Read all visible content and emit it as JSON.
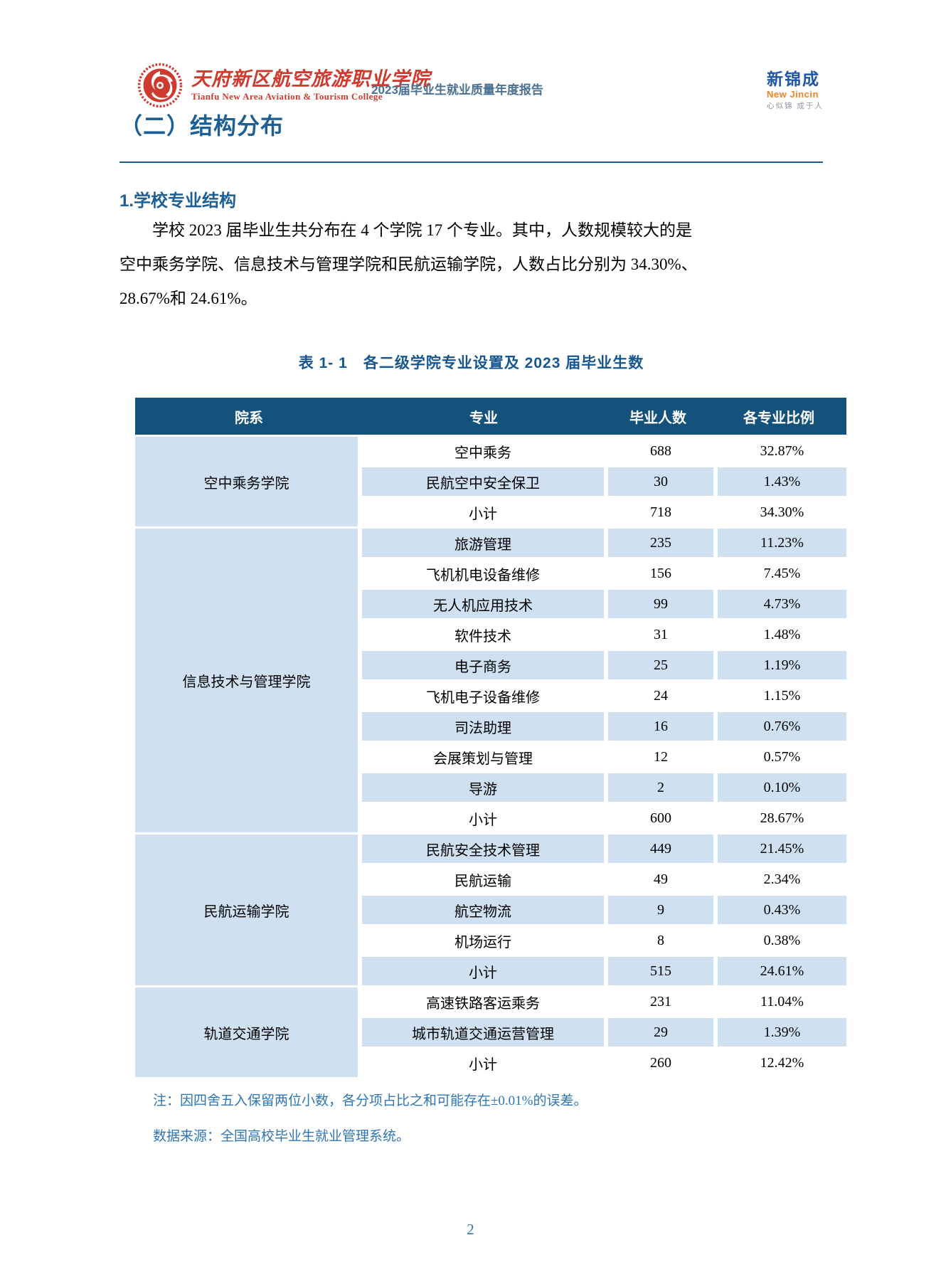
{
  "header": {
    "college_name_zh": "天府新区航空旅游职业学院",
    "college_name_en": "Tianfu New Area Aviation & Tourism College",
    "report_title": "2023届毕业生就业质量年度报告",
    "brand": {
      "name_zh": "新锦成",
      "name_en": "New Jincin",
      "slogan": "心似锦 成于人"
    }
  },
  "section": {
    "title": "（二）结构分布",
    "subsection": "1.学校专业结构",
    "paragraph_lines": [
      "学校 2023 届毕业生共分布在 4 个学院 17 个专业。其中，人数规模较大的是",
      "空中乘务学院、信息技术与管理学院和民航运输学院，人数占比分别为 34.30%、",
      "28.67%和 24.61%。"
    ]
  },
  "table": {
    "caption": "表 1- 1　各二级学院专业设置及 2023 届毕业生数",
    "columns": [
      "院系",
      "专业",
      "毕业人数",
      "各专业比例"
    ],
    "groups": [
      {
        "college": "空中乘务学院",
        "rows": [
          [
            "空中乘务",
            "688",
            "32.87%"
          ],
          [
            "民航空中安全保卫",
            "30",
            "1.43%"
          ],
          [
            "小计",
            "718",
            "34.30%"
          ]
        ]
      },
      {
        "college": "信息技术与管理学院",
        "rows": [
          [
            "旅游管理",
            "235",
            "11.23%"
          ],
          [
            "飞机机电设备维修",
            "156",
            "7.45%"
          ],
          [
            "无人机应用技术",
            "99",
            "4.73%"
          ],
          [
            "软件技术",
            "31",
            "1.48%"
          ],
          [
            "电子商务",
            "25",
            "1.19%"
          ],
          [
            "飞机电子设备维修",
            "24",
            "1.15%"
          ],
          [
            "司法助理",
            "16",
            "0.76%"
          ],
          [
            "会展策划与管理",
            "12",
            "0.57%"
          ],
          [
            "导游",
            "2",
            "0.10%"
          ],
          [
            "小计",
            "600",
            "28.67%"
          ]
        ]
      },
      {
        "college": "民航运输学院",
        "rows": [
          [
            "民航安全技术管理",
            "449",
            "21.45%"
          ],
          [
            "民航运输",
            "49",
            "2.34%"
          ],
          [
            "航空物流",
            "9",
            "0.43%"
          ],
          [
            "机场运行",
            "8",
            "0.38%"
          ],
          [
            "小计",
            "515",
            "24.61%"
          ]
        ]
      },
      {
        "college": "轨道交通学院",
        "rows": [
          [
            "高速铁路客运乘务",
            "231",
            "11.04%"
          ],
          [
            "城市轨道交通运营管理",
            "29",
            "1.39%"
          ],
          [
            "小计",
            "260",
            "12.42%"
          ]
        ]
      }
    ],
    "note": "注：因四舍五入保留两位小数，各分项占比之和可能存在±0.01%的误差。",
    "source": "数据来源：全国高校毕业生就业管理系统。"
  },
  "footer": {
    "page_number": "2"
  },
  "colors": {
    "table_header_bg": "#15527b",
    "table_row_alt_bg": "#cfe0f1",
    "heading_blue": "#1c5f95",
    "note_blue": "#2e75b6",
    "logo_red": "#cf3a2e",
    "brand_blue": "#1f55a5",
    "brand_orange": "#f5821f"
  }
}
